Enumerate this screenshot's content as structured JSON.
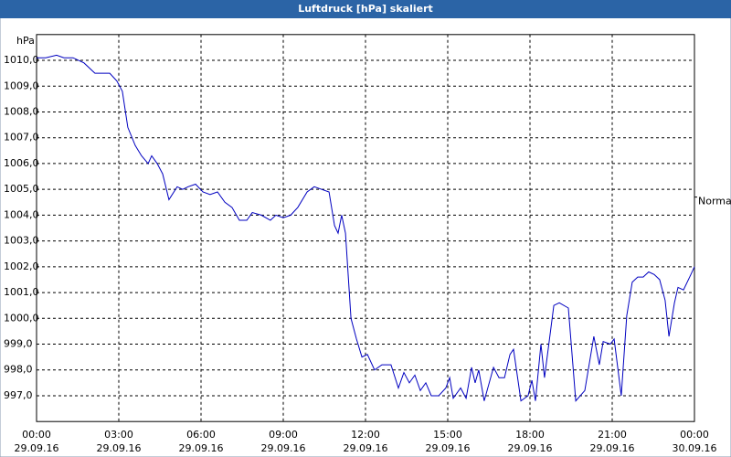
{
  "chart_data": {
    "type": "line",
    "title": "Luftdruck [hPa] skaliert",
    "y_unit": "hPa",
    "normal_marker": {
      "label": "Normal",
      "value": 1004.7
    },
    "xlim": [
      0,
      24
    ],
    "ylim": [
      996,
      1011
    ],
    "grid": true,
    "xticks": [
      {
        "value": 0,
        "label": "00:00"
      },
      {
        "value": 3,
        "label": "03:00"
      },
      {
        "value": 6,
        "label": "06:00"
      },
      {
        "value": 9,
        "label": "09:00"
      },
      {
        "value": 12,
        "label": "12:00"
      },
      {
        "value": 15,
        "label": "15:00"
      },
      {
        "value": 18,
        "label": "18:00"
      },
      {
        "value": 21,
        "label": "21:00"
      },
      {
        "value": 24,
        "label": "00:00"
      }
    ],
    "xtick_dates": [
      "29.09.16",
      "29.09.16",
      "29.09.16",
      "29.09.16",
      "29.09.16",
      "29.09.16",
      "29.09.16",
      "29.09.16",
      "30.09.16"
    ],
    "yticks": [
      {
        "value": 997,
        "label": "997,0"
      },
      {
        "value": 998,
        "label": "998,0"
      },
      {
        "value": 999,
        "label": "999,0"
      },
      {
        "value": 1000,
        "label": "1000,0"
      },
      {
        "value": 1001,
        "label": "1001,0"
      },
      {
        "value": 1002,
        "label": "1002,0"
      },
      {
        "value": 1003,
        "label": "1003,0"
      },
      {
        "value": 1004,
        "label": "1004,0"
      },
      {
        "value": 1005,
        "label": "1005,0"
      },
      {
        "value": 1006,
        "label": "1006,0"
      },
      {
        "value": 1007,
        "label": "1007,0"
      },
      {
        "value": 1008,
        "label": "1008,0"
      },
      {
        "value": 1009,
        "label": "1009,0"
      },
      {
        "value": 1010,
        "label": "1010,0"
      }
    ],
    "series": [
      {
        "color": "#0000c0",
        "x": [
          0,
          0.33,
          0.73,
          1.0,
          1.33,
          1.73,
          2.13,
          2.4,
          2.67,
          2.93,
          3.13,
          3.33,
          3.6,
          3.83,
          4.07,
          4.2,
          4.4,
          4.6,
          4.83,
          5.13,
          5.33,
          5.53,
          5.8,
          6.07,
          6.33,
          6.6,
          6.87,
          7.13,
          7.4,
          7.67,
          7.87,
          8.2,
          8.53,
          8.73,
          9.0,
          9.27,
          9.53,
          9.87,
          10.13,
          10.4,
          10.67,
          10.87,
          11.0,
          11.13,
          11.27,
          11.47,
          11.67,
          11.87,
          12.07,
          12.33,
          12.6,
          12.93,
          13.2,
          13.4,
          13.6,
          13.8,
          14.0,
          14.2,
          14.4,
          14.67,
          14.93,
          15.07,
          15.2,
          15.47,
          15.67,
          15.87,
          16.0,
          16.13,
          16.33,
          16.67,
          16.87,
          17.07,
          17.27,
          17.4,
          17.67,
          17.93,
          18.07,
          18.2,
          18.4,
          18.53,
          18.87,
          19.07,
          19.4,
          19.67,
          20.0,
          20.33,
          20.53,
          20.67,
          20.93,
          21.07,
          21.33,
          21.53,
          21.73,
          21.93,
          22.13,
          22.33,
          22.53,
          22.73,
          22.93,
          23.07,
          23.27,
          23.4,
          23.6,
          23.87,
          24.0
        ],
        "values": [
          1010.1,
          1010.1,
          1010.2,
          1010.1,
          1010.1,
          1009.9,
          1009.5,
          1009.5,
          1009.5,
          1009.2,
          1008.8,
          1007.4,
          1006.7,
          1006.3,
          1006.0,
          1006.3,
          1006.0,
          1005.6,
          1004.6,
          1005.1,
          1005.0,
          1005.1,
          1005.2,
          1004.9,
          1004.8,
          1004.9,
          1004.5,
          1004.3,
          1003.8,
          1003.8,
          1004.1,
          1004.0,
          1003.8,
          1004.0,
          1003.9,
          1004.0,
          1004.3,
          1004.9,
          1005.1,
          1005.0,
          1004.9,
          1003.6,
          1003.3,
          1004.0,
          1003.3,
          1000.0,
          999.2,
          998.5,
          998.6,
          998.0,
          998.2,
          998.2,
          997.3,
          997.9,
          997.5,
          997.8,
          997.2,
          997.5,
          997.0,
          997.0,
          997.3,
          997.7,
          996.9,
          997.3,
          996.9,
          998.1,
          997.5,
          998.0,
          996.8,
          998.1,
          997.7,
          997.7,
          998.6,
          998.8,
          996.8,
          997.0,
          997.6,
          996.8,
          999.0,
          997.7,
          1000.5,
          1000.6,
          1000.4,
          996.8,
          997.2,
          999.3,
          998.2,
          999.1,
          999.0,
          999.2,
          997.0,
          1000.1,
          1001.4,
          1001.6,
          1001.6,
          1001.8,
          1001.7,
          1001.5,
          1000.7,
          999.3,
          1000.6,
          1001.2,
          1001.1,
          1001.7,
          1002.0
        ]
      }
    ]
  }
}
